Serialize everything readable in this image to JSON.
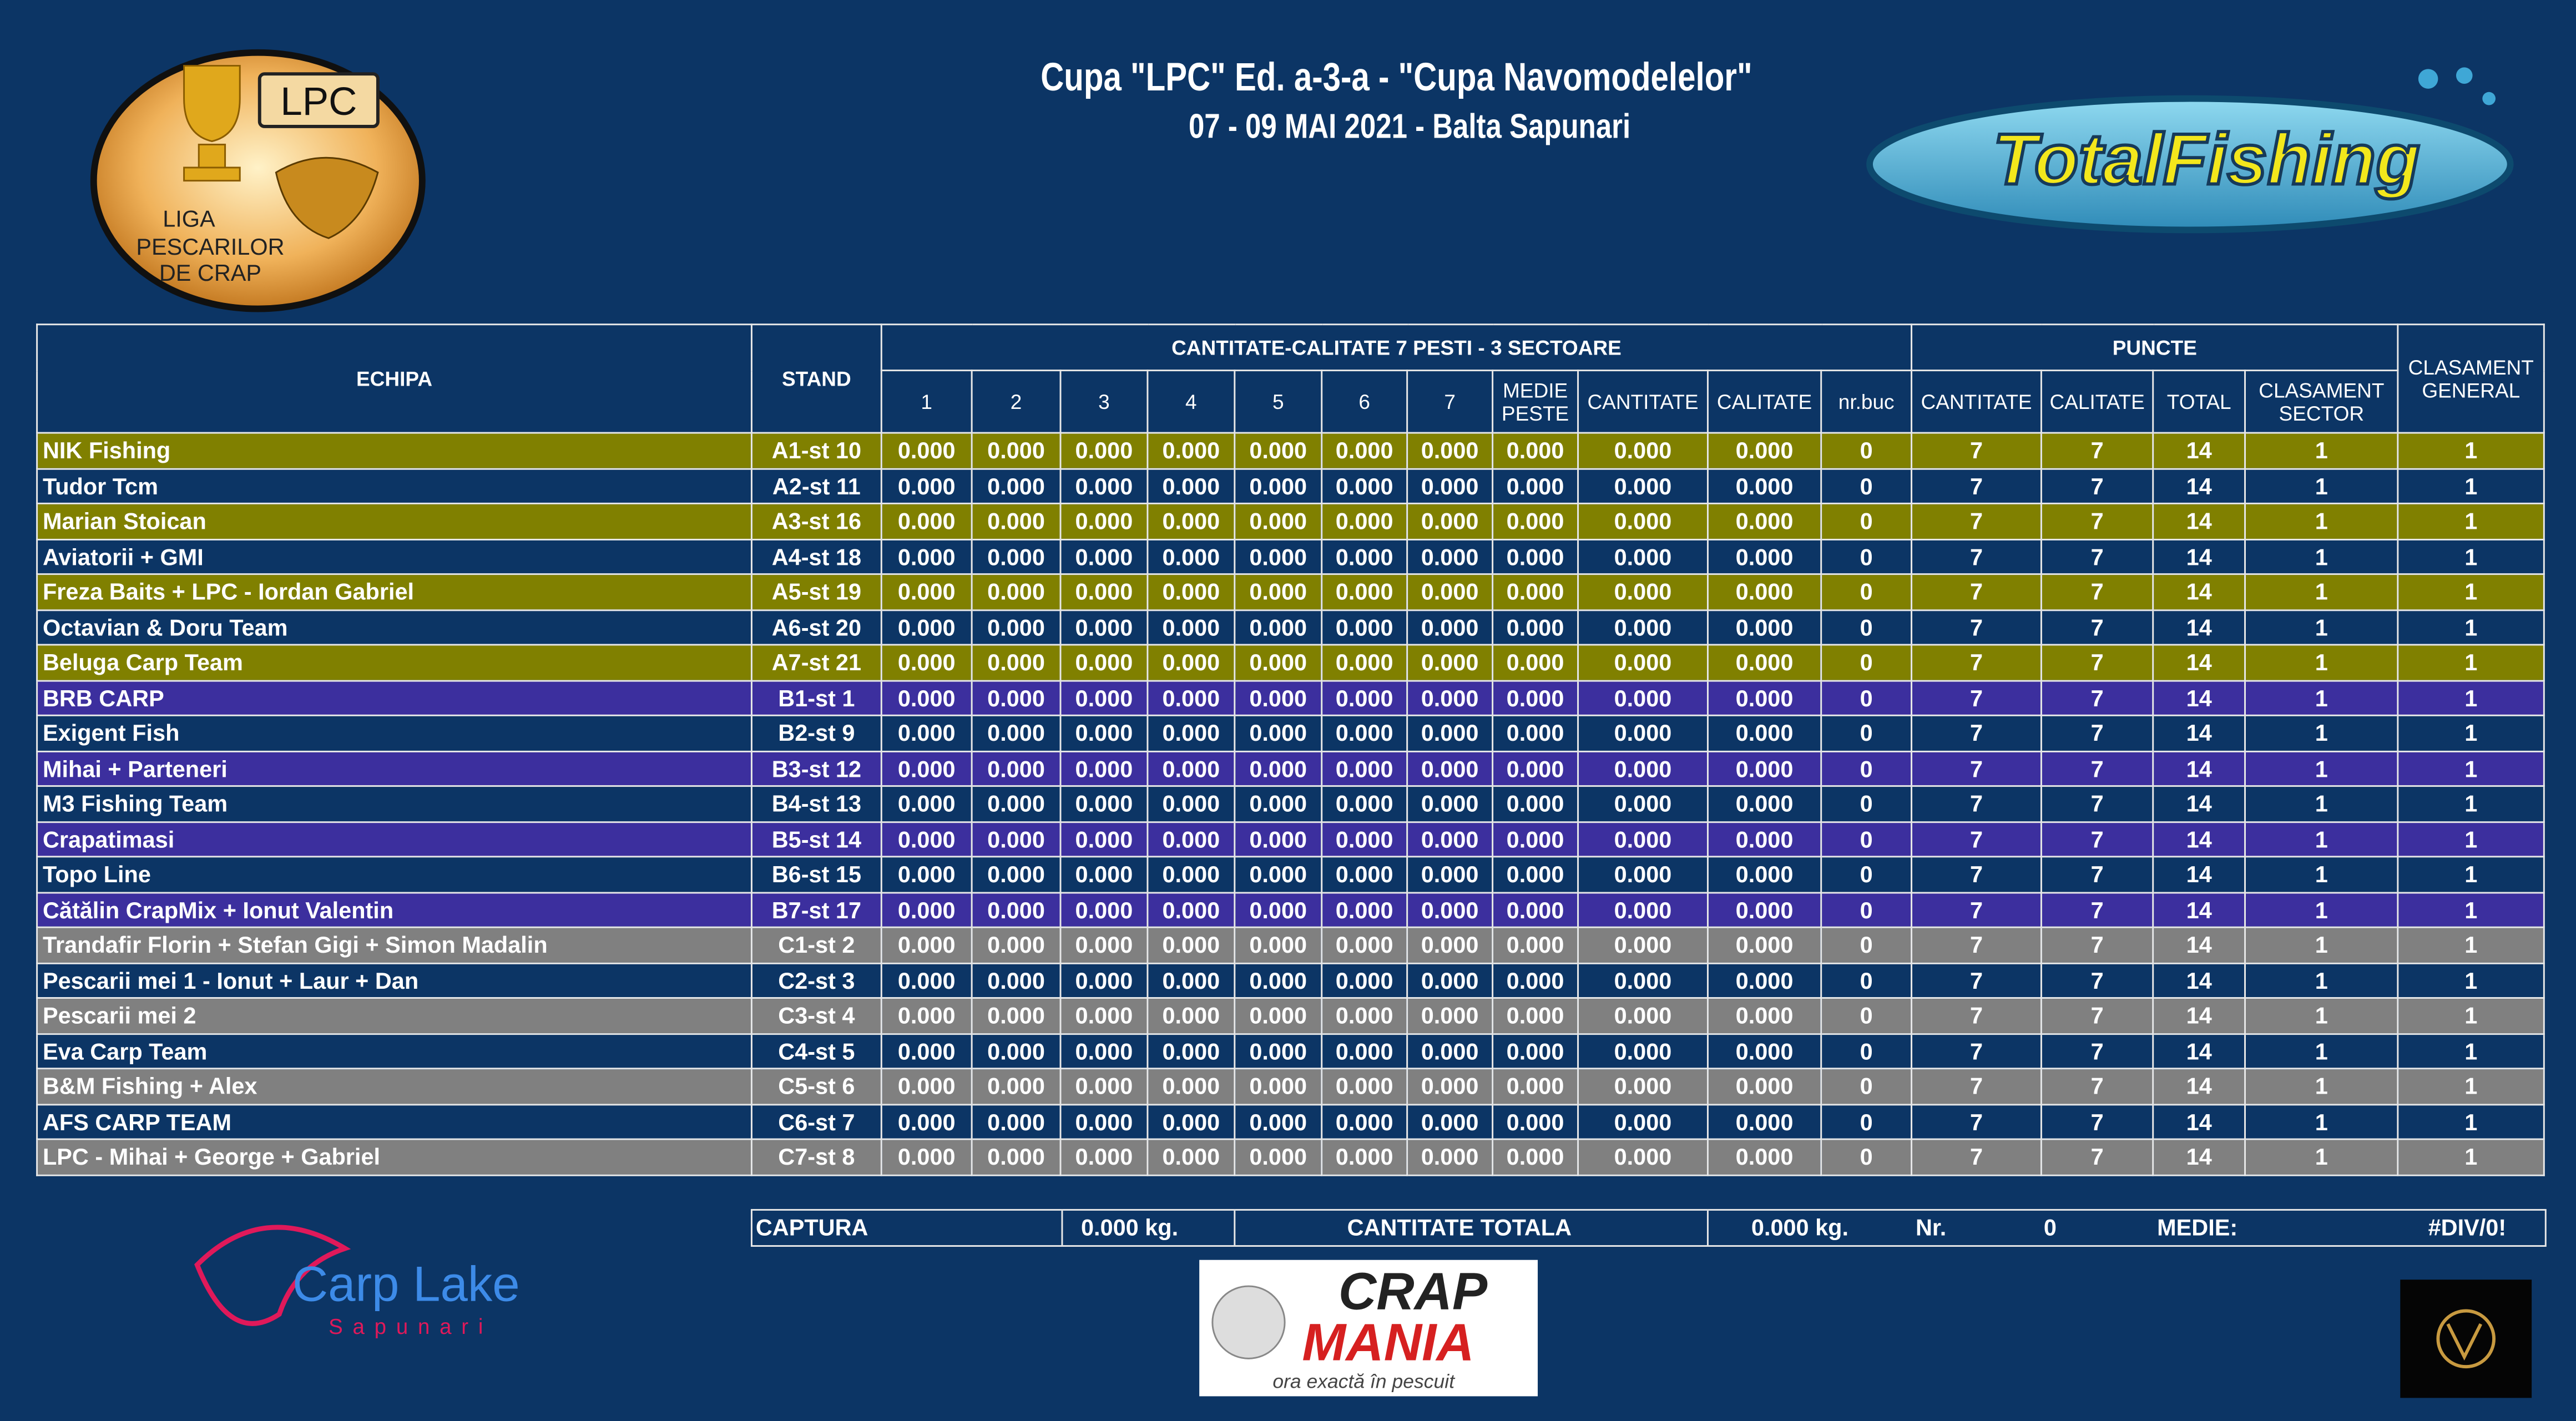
{
  "header": {
    "title": "Cupa \"LPC\" Ed. a-3-a - \"Cupa Navomodelelor\"",
    "subtitle": "07 - 09 MAI 2021 - Balta Sapunari"
  },
  "logos": {
    "lpc_badge": "LPC",
    "lpc_name": [
      "LIGA",
      "PESCARILOR",
      "DE CRAP"
    ],
    "total_fishing": "TotalFishing",
    "carp_lake": "Carp Lake",
    "carp_lake_sub": "Sapunari",
    "crap_mania": [
      "CRAP",
      "MANIA"
    ],
    "crap_mania_tagline": "ora exactă în pescuit"
  },
  "table": {
    "headers": {
      "team": "ECHIPA",
      "stand": "STAND",
      "group_catch": "CANTITATE-CALITATE 7 PESTI - 3 SECTOARE",
      "group_points": "PUNCTE",
      "overall_rank": "CLASAMENT GENERAL",
      "sub": [
        "1",
        "2",
        "3",
        "4",
        "5",
        "6",
        "7",
        "MEDIE PESTE",
        "CANTITATE",
        "CALITATE",
        "nr.buc",
        "CANTITATE",
        "CALITATE",
        "TOTAL",
        "CLASAMENT SECTOR"
      ]
    },
    "rows": [
      [
        "NIK Fishing",
        "A1-st 10",
        "0.000",
        "0.000",
        "0.000",
        "0.000",
        "0.000",
        "0.000",
        "0.000",
        "0.000",
        "0.000",
        "0.000",
        0,
        7,
        7,
        14,
        1,
        1
      ],
      [
        "Tudor Tcm",
        "A2-st 11",
        "0.000",
        "0.000",
        "0.000",
        "0.000",
        "0.000",
        "0.000",
        "0.000",
        "0.000",
        "0.000",
        "0.000",
        0,
        7,
        7,
        14,
        1,
        1
      ],
      [
        "Marian Stoican",
        "A3-st 16",
        "0.000",
        "0.000",
        "0.000",
        "0.000",
        "0.000",
        "0.000",
        "0.000",
        "0.000",
        "0.000",
        "0.000",
        0,
        7,
        7,
        14,
        1,
        1
      ],
      [
        "Aviatorii + GMI",
        "A4-st 18",
        "0.000",
        "0.000",
        "0.000",
        "0.000",
        "0.000",
        "0.000",
        "0.000",
        "0.000",
        "0.000",
        "0.000",
        0,
        7,
        7,
        14,
        1,
        1
      ],
      [
        "Freza Baits + LPC - Iordan Gabriel",
        "A5-st 19",
        "0.000",
        "0.000",
        "0.000",
        "0.000",
        "0.000",
        "0.000",
        "0.000",
        "0.000",
        "0.000",
        "0.000",
        0,
        7,
        7,
        14,
        1,
        1
      ],
      [
        "Octavian & Doru Team",
        "A6-st 20",
        "0.000",
        "0.000",
        "0.000",
        "0.000",
        "0.000",
        "0.000",
        "0.000",
        "0.000",
        "0.000",
        "0.000",
        0,
        7,
        7,
        14,
        1,
        1
      ],
      [
        "Beluga Carp Team",
        "A7-st 21",
        "0.000",
        "0.000",
        "0.000",
        "0.000",
        "0.000",
        "0.000",
        "0.000",
        "0.000",
        "0.000",
        "0.000",
        0,
        7,
        7,
        14,
        1,
        1
      ],
      [
        "BRB CARP",
        "B1-st 1",
        "0.000",
        "0.000",
        "0.000",
        "0.000",
        "0.000",
        "0.000",
        "0.000",
        "0.000",
        "0.000",
        "0.000",
        0,
        7,
        7,
        14,
        1,
        1
      ],
      [
        "Exigent Fish",
        "B2-st 9",
        "0.000",
        "0.000",
        "0.000",
        "0.000",
        "0.000",
        "0.000",
        "0.000",
        "0.000",
        "0.000",
        "0.000",
        0,
        7,
        7,
        14,
        1,
        1
      ],
      [
        "Mihai + Parteneri",
        "B3-st 12",
        "0.000",
        "0.000",
        "0.000",
        "0.000",
        "0.000",
        "0.000",
        "0.000",
        "0.000",
        "0.000",
        "0.000",
        0,
        7,
        7,
        14,
        1,
        1
      ],
      [
        "M3 Fishing Team",
        "B4-st 13",
        "0.000",
        "0.000",
        "0.000",
        "0.000",
        "0.000",
        "0.000",
        "0.000",
        "0.000",
        "0.000",
        "0.000",
        0,
        7,
        7,
        14,
        1,
        1
      ],
      [
        "Crapatimasi",
        "B5-st 14",
        "0.000",
        "0.000",
        "0.000",
        "0.000",
        "0.000",
        "0.000",
        "0.000",
        "0.000",
        "0.000",
        "0.000",
        0,
        7,
        7,
        14,
        1,
        1
      ],
      [
        "Topo Line",
        "B6-st 15",
        "0.000",
        "0.000",
        "0.000",
        "0.000",
        "0.000",
        "0.000",
        "0.000",
        "0.000",
        "0.000",
        "0.000",
        0,
        7,
        7,
        14,
        1,
        1
      ],
      [
        "Cătălin CrapMix + Ionut Valentin",
        "B7-st 17",
        "0.000",
        "0.000",
        "0.000",
        "0.000",
        "0.000",
        "0.000",
        "0.000",
        "0.000",
        "0.000",
        "0.000",
        0,
        7,
        7,
        14,
        1,
        1
      ],
      [
        "Trandafir Florin + Stefan Gigi + Simon Madalin",
        "C1-st 2",
        "0.000",
        "0.000",
        "0.000",
        "0.000",
        "0.000",
        "0.000",
        "0.000",
        "0.000",
        "0.000",
        "0.000",
        0,
        7,
        7,
        14,
        1,
        1
      ],
      [
        "Pescarii mei 1 - Ionut + Laur + Dan",
        "C2-st 3",
        "0.000",
        "0.000",
        "0.000",
        "0.000",
        "0.000",
        "0.000",
        "0.000",
        "0.000",
        "0.000",
        "0.000",
        0,
        7,
        7,
        14,
        1,
        1
      ],
      [
        "Pescarii mei 2",
        "C3-st 4",
        "0.000",
        "0.000",
        "0.000",
        "0.000",
        "0.000",
        "0.000",
        "0.000",
        "0.000",
        "0.000",
        "0.000",
        0,
        7,
        7,
        14,
        1,
        1
      ],
      [
        "Eva Carp Team",
        "C4-st 5",
        "0.000",
        "0.000",
        "0.000",
        "0.000",
        "0.000",
        "0.000",
        "0.000",
        "0.000",
        "0.000",
        "0.000",
        0,
        7,
        7,
        14,
        1,
        1
      ],
      [
        "B&M Fishing + Alex",
        "C5-st 6",
        "0.000",
        "0.000",
        "0.000",
        "0.000",
        "0.000",
        "0.000",
        "0.000",
        "0.000",
        "0.000",
        "0.000",
        0,
        7,
        7,
        14,
        1,
        1
      ],
      [
        "AFS CARP TEAM",
        "C6-st 7",
        "0.000",
        "0.000",
        "0.000",
        "0.000",
        "0.000",
        "0.000",
        "0.000",
        "0.000",
        "0.000",
        "0.000",
        0,
        7,
        7,
        14,
        1,
        1
      ],
      [
        "LPC - Mihai + George + Gabriel",
        "C7-st 8",
        "0.000",
        "0.000",
        "0.000",
        "0.000",
        "0.000",
        "0.000",
        "0.000",
        "0.000",
        "0.000",
        "0.000",
        0,
        7,
        7,
        14,
        1,
        1
      ]
    ]
  },
  "summary": {
    "catch_label": "CAPTURA",
    "catch_value": "0.000 kg.",
    "total_label": "CANTITATE TOTALA",
    "total_value": "0.000 kg.",
    "count_label": "Nr.",
    "count_value": 0,
    "average_label": "MEDIE:",
    "average_value": "#DIV/0!"
  }
}
